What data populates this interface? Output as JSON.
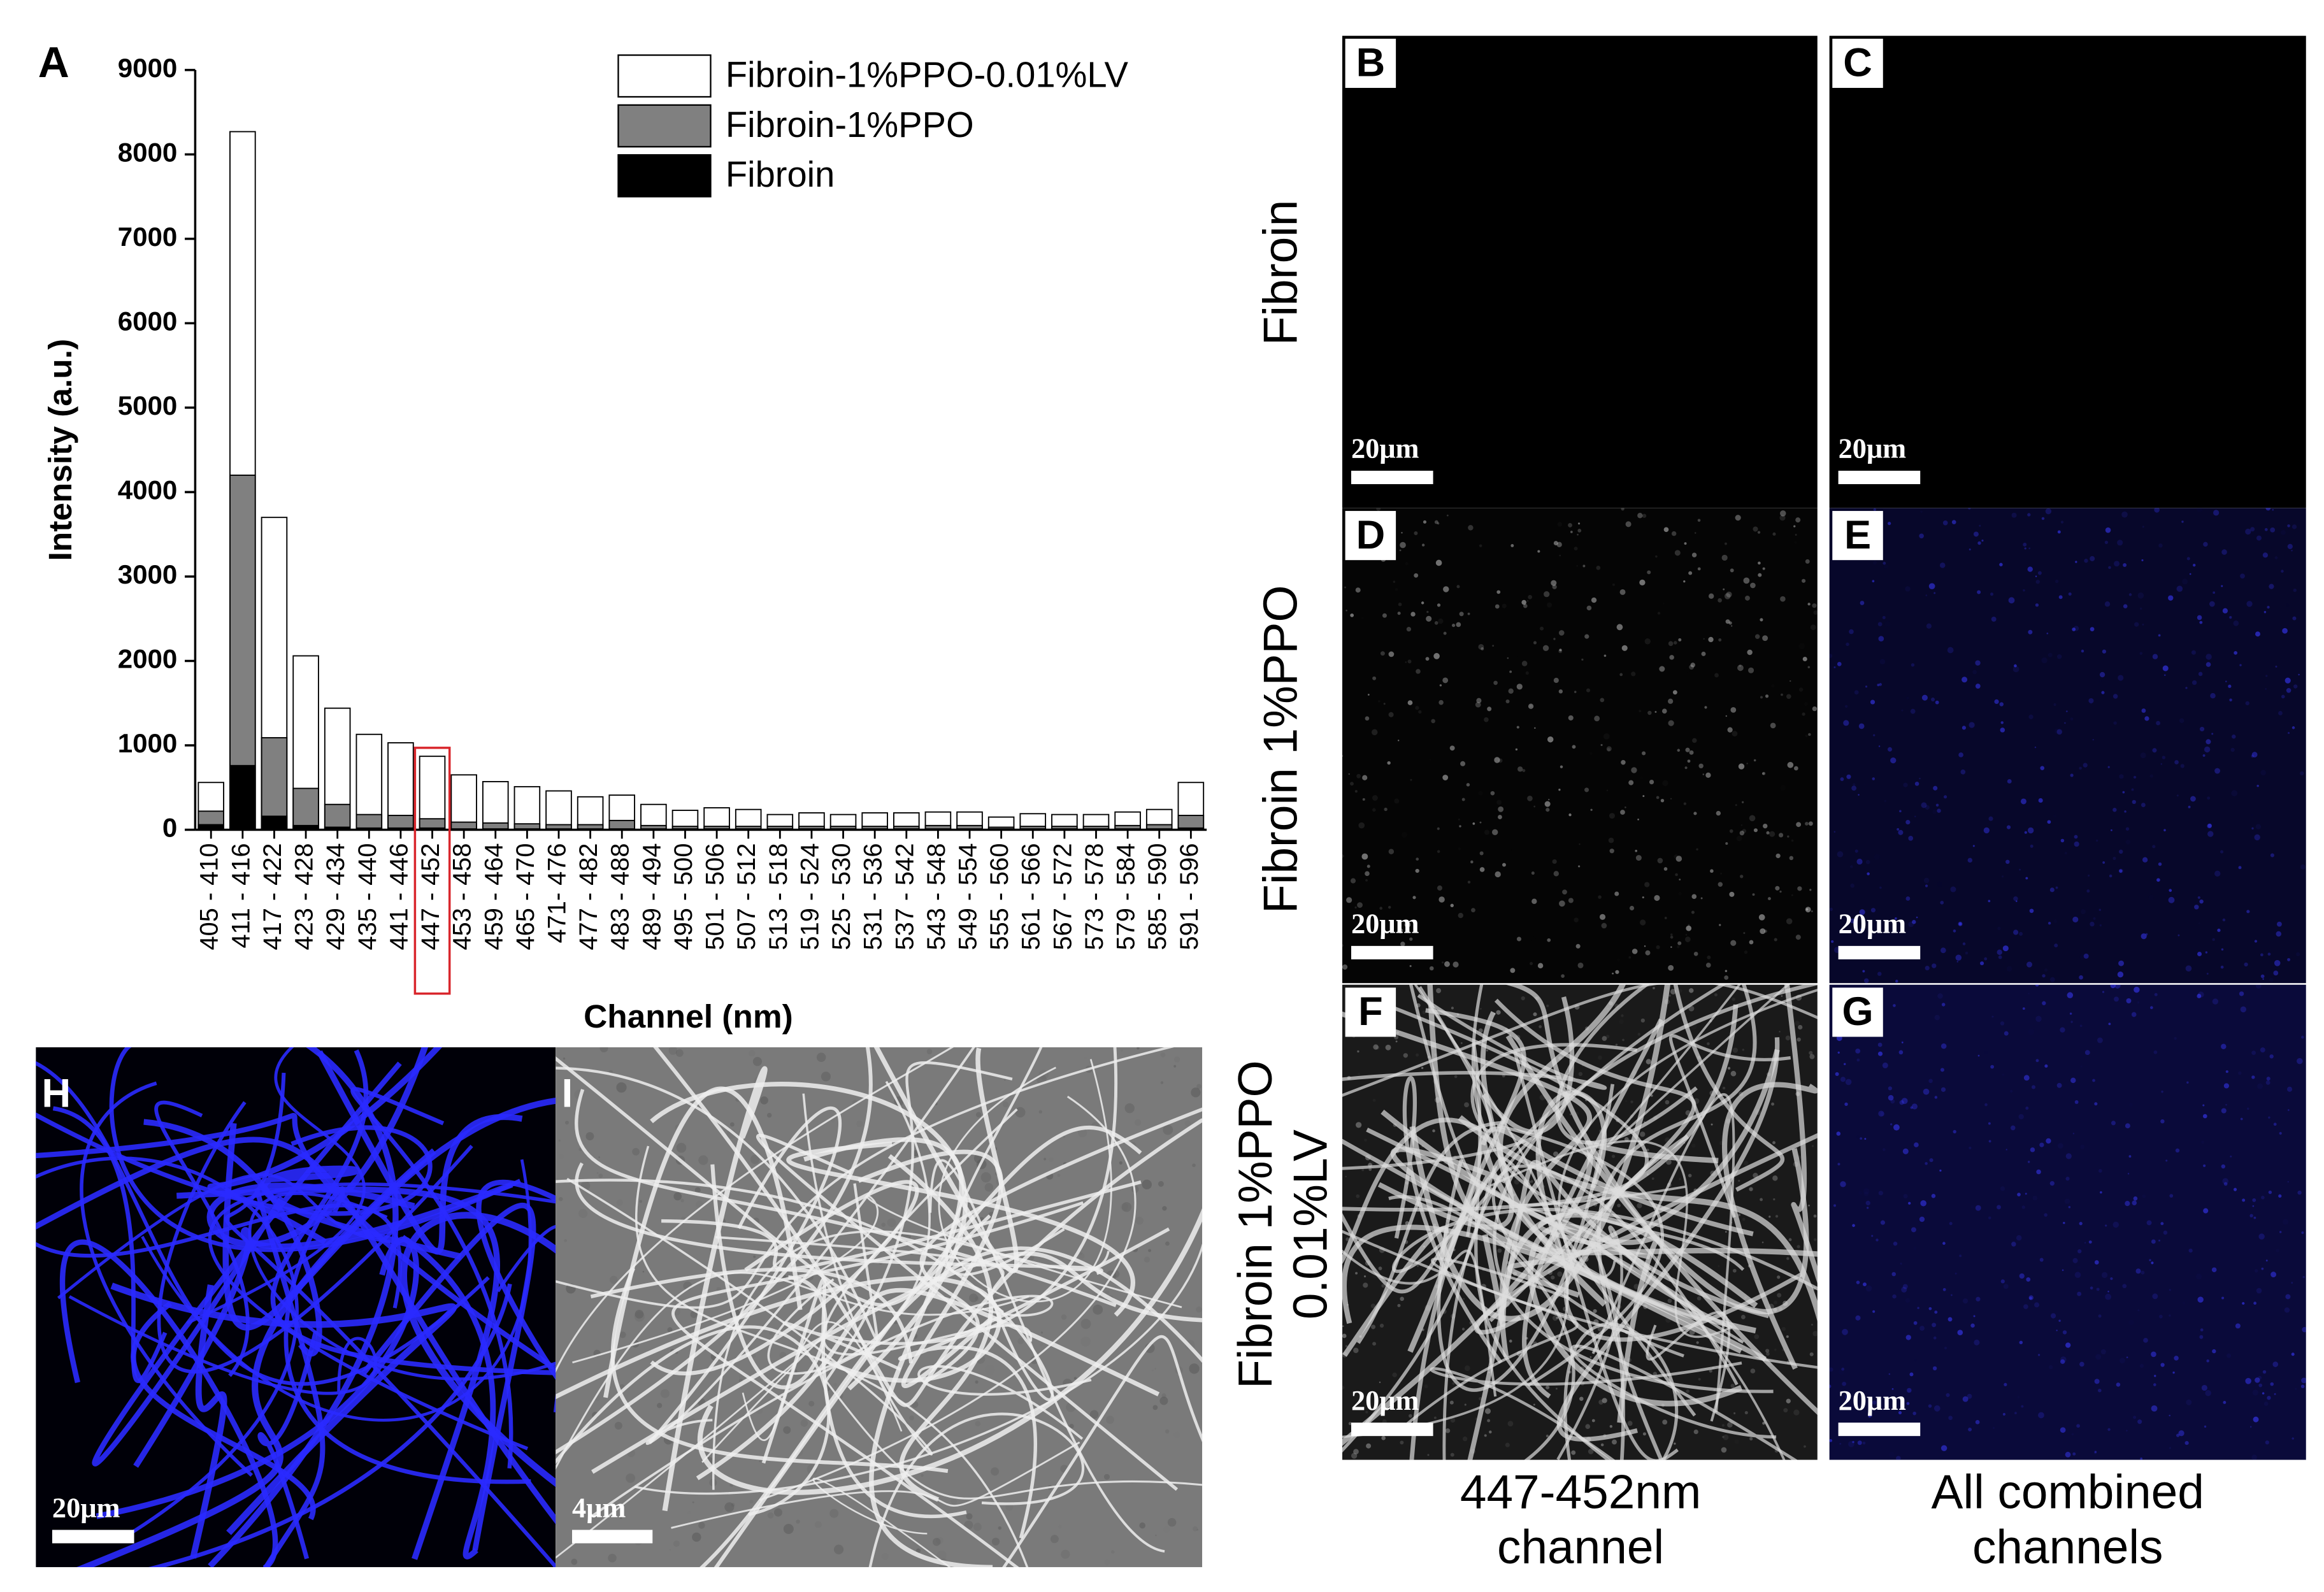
{
  "chart_data": {
    "type": "bar",
    "stacked": false,
    "xlabel": "Channel (nm)",
    "ylabel": "Intensity (a.u.)",
    "categories": [
      "405 - 410",
      "411 - 416",
      "417 - 422",
      "423 - 428",
      "429 - 434",
      "435 - 440",
      "441 - 446",
      "447 - 452",
      "453 - 458",
      "459 - 464",
      "465 - 470",
      "471- 476",
      "477 - 482",
      "483 - 488",
      "489 - 494",
      "495 - 500",
      "501 - 506",
      "507 - 512",
      "513 - 518",
      "519 - 524",
      "525 - 530",
      "531 - 536",
      "537 - 542",
      "543 - 548",
      "549 - 554",
      "555 - 560",
      "561 - 566",
      "567 - 572",
      "573 - 578",
      "579 - 584",
      "585 - 590",
      "591 - 596"
    ],
    "series": [
      {
        "name": "Fibroin-1%PPO-0.01%LV",
        "color": "#ffffff",
        "values": [
          560,
          8270,
          3700,
          2060,
          1440,
          1130,
          1030,
          870,
          650,
          570,
          510,
          460,
          390,
          410,
          300,
          230,
          260,
          240,
          180,
          200,
          180,
          200,
          200,
          210,
          210,
          150,
          190,
          180,
          180,
          210,
          240,
          560
        ]
      },
      {
        "name": "Fibroin-1%PPO",
        "color": "#808080",
        "values": [
          220,
          4200,
          1090,
          490,
          300,
          180,
          170,
          130,
          90,
          80,
          70,
          60,
          60,
          110,
          50,
          40,
          40,
          40,
          40,
          40,
          40,
          40,
          40,
          50,
          50,
          30,
          40,
          40,
          40,
          50,
          60,
          170
        ]
      },
      {
        "name": "Fibroin",
        "color": "#000000",
        "values": [
          60,
          760,
          160,
          50,
          30,
          20,
          20,
          20,
          10,
          10,
          10,
          10,
          10,
          10,
          10,
          10,
          10,
          10,
          10,
          10,
          10,
          10,
          10,
          10,
          10,
          10,
          10,
          10,
          10,
          10,
          10,
          20
        ]
      }
    ],
    "ylim": [
      0,
      9000
    ],
    "yticks": [
      0,
      1000,
      2000,
      3000,
      4000,
      5000,
      6000,
      7000,
      8000,
      9000
    ]
  },
  "figure": {
    "chart_label": "A",
    "panels": [
      {
        "label": "B",
        "scale_bar": "20μm"
      },
      {
        "label": "C",
        "scale_bar": "20μm"
      },
      {
        "label": "D",
        "scale_bar": "20μm"
      },
      {
        "label": "E",
        "scale_bar": "20μm"
      },
      {
        "label": "F",
        "scale_bar": "20μm"
      },
      {
        "label": "G",
        "scale_bar": "20μm"
      },
      {
        "label": "H",
        "scale_bar": "20μm"
      },
      {
        "label": "I",
        "scale_bar": "4μm"
      }
    ],
    "row_labels": [
      [
        "Fibroin"
      ],
      [
        "Fibroin 1%PPO"
      ],
      [
        "Fibroin 1%PPO",
        "0.01%LV"
      ]
    ],
    "column_labels": [
      [
        "447-452nm",
        "channel"
      ],
      [
        "All combined",
        "channels"
      ]
    ]
  }
}
